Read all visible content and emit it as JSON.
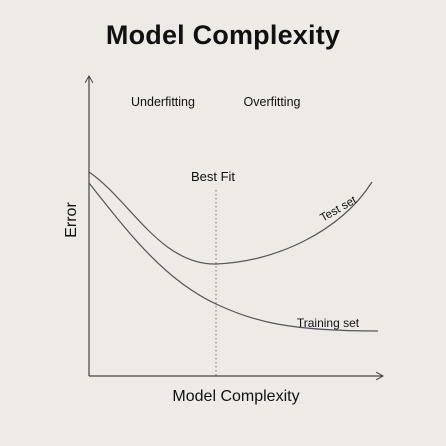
{
  "title": "Model Complexity",
  "regions": {
    "left": "Underfitting",
    "right": "Overfitting"
  },
  "best_fit_label": "Best Fit",
  "axes": {
    "x_label": "Model Complexity",
    "y_label": "Error"
  },
  "curves": {
    "test": "Test set",
    "training": "Training set"
  },
  "colors": {
    "background": "#eeebe7",
    "ink": "#111111",
    "curve": "#555555"
  }
}
